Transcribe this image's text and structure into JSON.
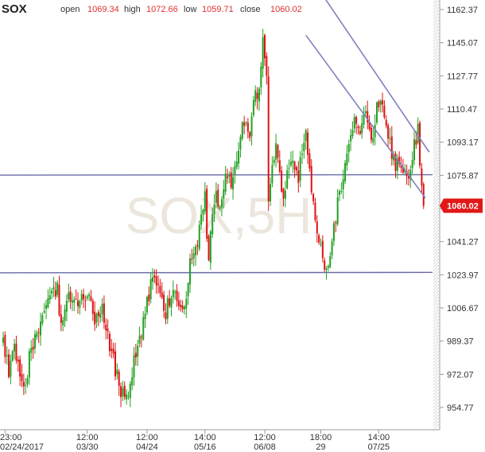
{
  "header": {
    "symbol": "SOX",
    "open_label": "open",
    "open_value": "1069.34",
    "high_label": "high",
    "high_value": "1072.66",
    "low_label": "low",
    "low_value": "1059.71",
    "close_label": "close",
    "close_value": "1060.02"
  },
  "watermark": "SOX,5H",
  "last_price_label": "1060.02",
  "colors": {
    "up": "#22a022",
    "down": "#dd1111",
    "trendline": "#8080c0",
    "hline": "#6a6aa8",
    "last_bg": "#e01818",
    "axis": "#999999"
  },
  "chart_data": {
    "type": "candlestick",
    "title": "SOX",
    "xlabel": "",
    "ylabel": "",
    "ylim": [
      944,
      1168
    ],
    "y_ticks": [
      "1162.37",
      "1145.07",
      "1127.77",
      "1110.47",
      "1093.17",
      "1075.87",
      "1058.57",
      "1041.27",
      "1023.97",
      "1006.67",
      "989.37",
      "972.07",
      "954.77"
    ],
    "x_ticks": [
      {
        "time": "23:00",
        "date": "02/24/2017",
        "bar": 1
      },
      {
        "time": "12:00",
        "date": "03/30",
        "bar": 45
      },
      {
        "time": "12:00",
        "date": "04/24",
        "bar": 77
      },
      {
        "time": "14:00",
        "date": "05/16",
        "bar": 108
      },
      {
        "time": "12:00",
        "date": "06/08",
        "bar": 140
      },
      {
        "time": "18:00",
        "date": "29",
        "bar": 170
      },
      {
        "time": "14:00",
        "date": "07/25",
        "bar": 201
      }
    ],
    "horizontal_lines": [
      1076,
      1025
    ],
    "trendlines": [
      {
        "bar1": 157,
        "value1": 1190,
        "bar2": 228,
        "value2": 1088
      },
      {
        "bar1": 162,
        "value1": 1149,
        "bar2": 226,
        "value2": 1064
      }
    ],
    "last_price": 1060.02,
    "anchors": [
      [
        0,
        990
      ],
      [
        3,
        975
      ],
      [
        6,
        985
      ],
      [
        9,
        970
      ],
      [
        11,
        962
      ],
      [
        14,
        980
      ],
      [
        17,
        990
      ],
      [
        20,
        1000
      ],
      [
        23,
        1005
      ],
      [
        26,
        1012
      ],
      [
        29,
        1016
      ],
      [
        31,
        995
      ],
      [
        34,
        1010
      ],
      [
        37,
        1014
      ],
      [
        40,
        1006
      ],
      [
        43,
        1012
      ],
      [
        46,
        1015
      ],
      [
        48,
        1000
      ],
      [
        51,
        1005
      ],
      [
        53,
        1005
      ],
      [
        56,
        990
      ],
      [
        58,
        985
      ],
      [
        61,
        970
      ],
      [
        63,
        962
      ],
      [
        65,
        960
      ],
      [
        67,
        964
      ],
      [
        69,
        975
      ],
      [
        71,
        983
      ],
      [
        73,
        990
      ],
      [
        75,
        998
      ],
      [
        77,
        1010
      ],
      [
        79,
        1018
      ],
      [
        81,
        1020
      ],
      [
        83,
        1015
      ],
      [
        85,
        1008
      ],
      [
        87,
        1005
      ],
      [
        89,
        1010
      ],
      [
        91,
        1015
      ],
      [
        93,
        1008
      ],
      [
        95,
        1006
      ],
      [
        97,
        1010
      ],
      [
        99,
        1020
      ],
      [
        100,
        1032
      ],
      [
        102,
        1035
      ],
      [
        104,
        1042
      ],
      [
        106,
        1055
      ],
      [
        108,
        1065
      ],
      [
        109,
        1040
      ],
      [
        110,
        1030
      ],
      [
        112,
        1060
      ],
      [
        114,
        1068
      ],
      [
        116,
        1055
      ],
      [
        118,
        1070
      ],
      [
        120,
        1075
      ],
      [
        122,
        1070
      ],
      [
        124,
        1082
      ],
      [
        126,
        1090
      ],
      [
        128,
        1100
      ],
      [
        130,
        1105
      ],
      [
        132,
        1100
      ],
      [
        134,
        1115
      ],
      [
        136,
        1120
      ],
      [
        138,
        1130
      ],
      [
        139,
        1145
      ],
      [
        140,
        1140
      ],
      [
        141,
        1125
      ],
      [
        142,
        1060
      ],
      [
        144,
        1080
      ],
      [
        146,
        1095
      ],
      [
        148,
        1075
      ],
      [
        150,
        1065
      ],
      [
        152,
        1078
      ],
      [
        154,
        1082
      ],
      [
        156,
        1080
      ],
      [
        158,
        1075
      ],
      [
        160,
        1090
      ],
      [
        162,
        1095
      ],
      [
        164,
        1078
      ],
      [
        166,
        1060
      ],
      [
        168,
        1050
      ],
      [
        170,
        1040
      ],
      [
        172,
        1030
      ],
      [
        174,
        1032
      ],
      [
        176,
        1040
      ],
      [
        178,
        1055
      ],
      [
        180,
        1065
      ],
      [
        182,
        1078
      ],
      [
        184,
        1090
      ],
      [
        186,
        1100
      ],
      [
        188,
        1103
      ],
      [
        190,
        1098
      ],
      [
        192,
        1105
      ],
      [
        194,
        1110
      ],
      [
        196,
        1102
      ],
      [
        198,
        1095
      ],
      [
        200,
        1112
      ],
      [
        202,
        1118
      ],
      [
        204,
        1105
      ],
      [
        206,
        1098
      ],
      [
        208,
        1085
      ],
      [
        210,
        1082
      ],
      [
        212,
        1085
      ],
      [
        214,
        1078
      ],
      [
        216,
        1072
      ],
      [
        218,
        1083
      ],
      [
        220,
        1092
      ],
      [
        222,
        1100
      ],
      [
        223,
        1082
      ],
      [
        224,
        1068
      ],
      [
        225,
        1060
      ]
    ]
  }
}
